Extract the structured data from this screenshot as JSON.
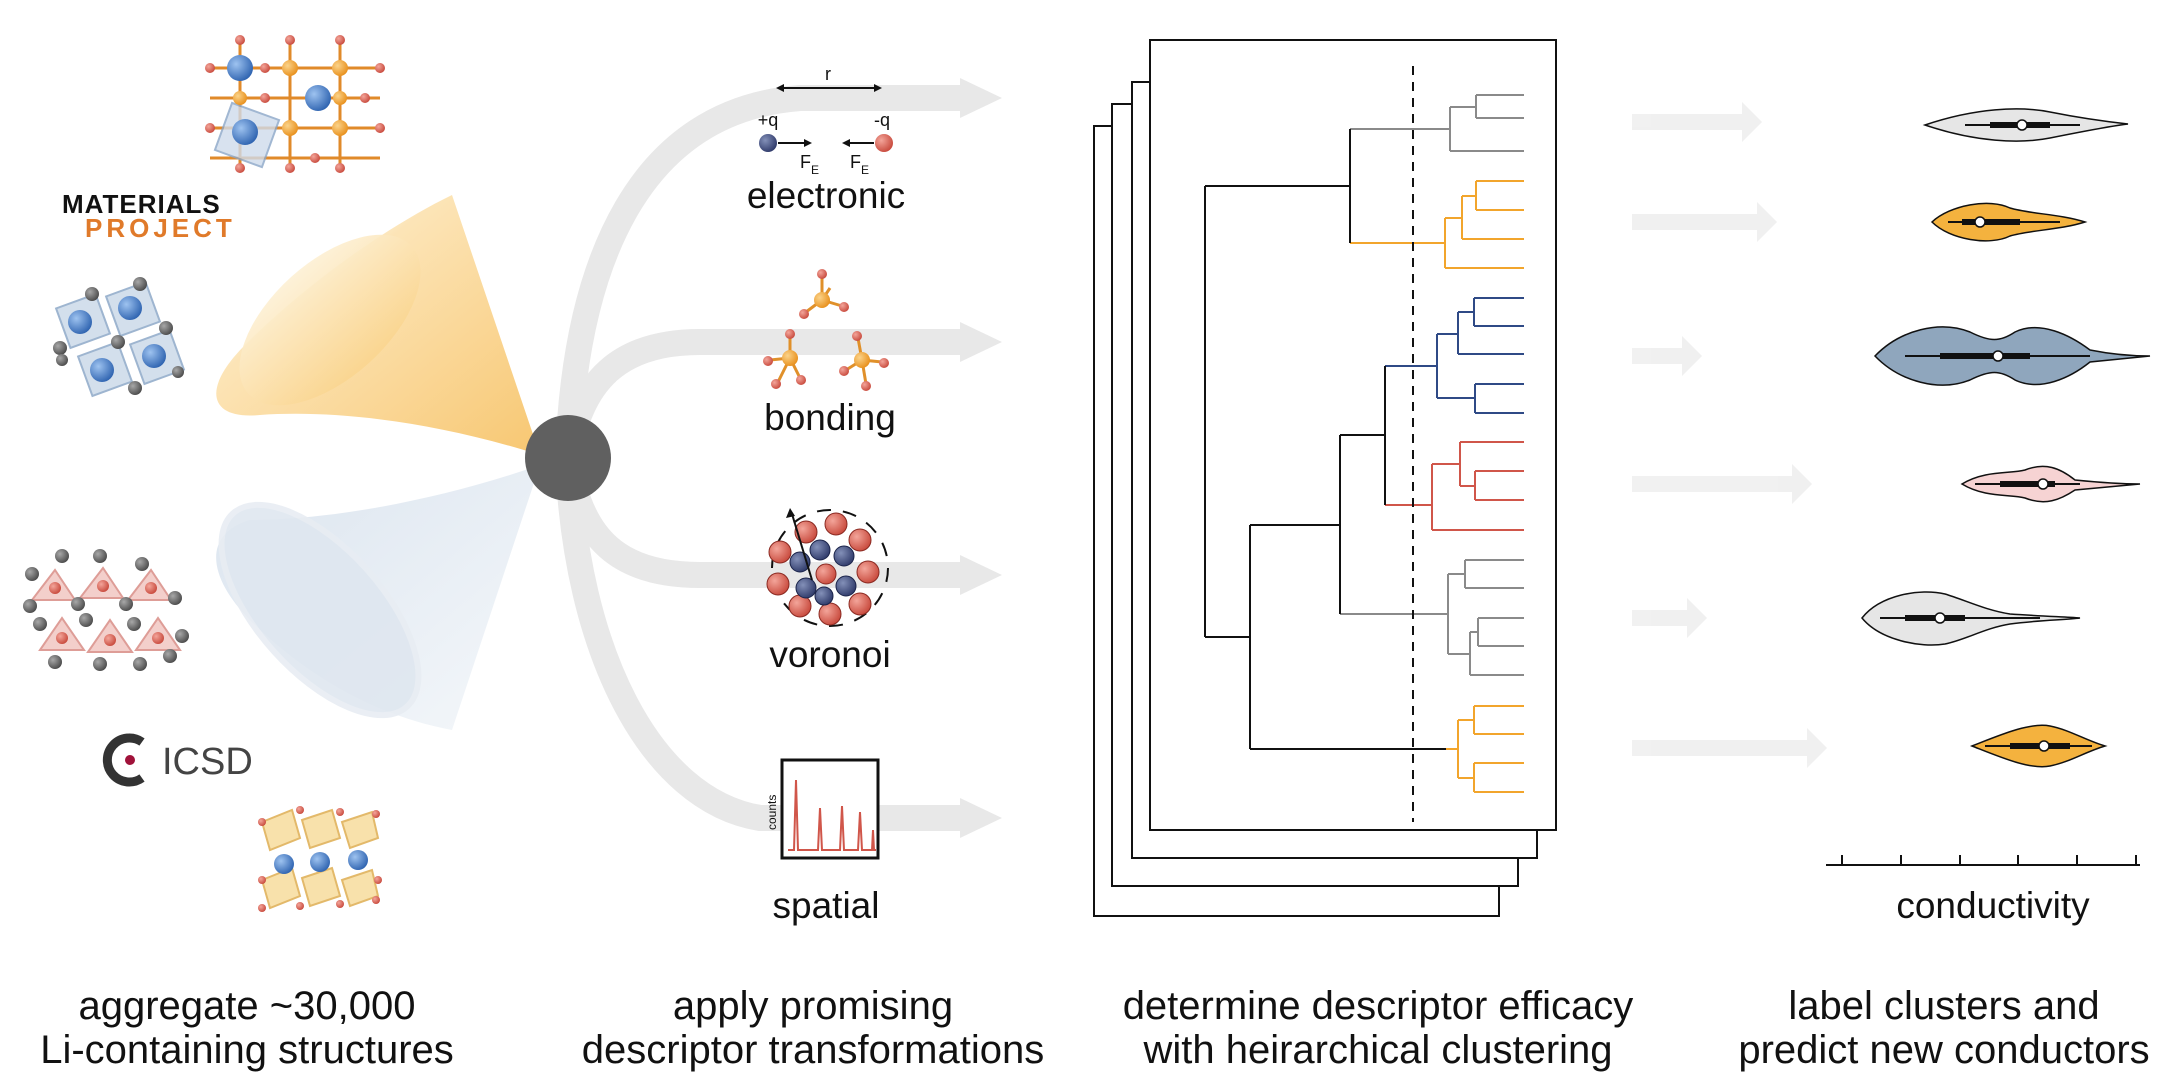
{
  "sources": {
    "materials_project": {
      "line1": "MATERIALS",
      "line2": "PROJECT"
    },
    "icsd": {
      "label": "ICSD"
    }
  },
  "descriptors": {
    "electronic": {
      "label": "electronic",
      "r": "r",
      "plus_q": "+q",
      "minus_q": "-q",
      "force": "F",
      "force_sub": "E"
    },
    "bonding": {
      "label": "bonding"
    },
    "voronoi": {
      "label": "voronoi"
    },
    "spatial": {
      "label": "spatial",
      "axis": "counts"
    }
  },
  "conductivity": {
    "label": "conductivity"
  },
  "captions": {
    "step1": {
      "line1": "aggregate ~30,000",
      "line2": "Li-containing structures"
    },
    "step2": {
      "line1": "apply promising",
      "line2": "descriptor transformations"
    },
    "step3": {
      "line1": "determine descriptor efficacy",
      "line2": "with heirarchical clustering"
    },
    "step4": {
      "line1": "label clusters and",
      "line2": "predict new conductors"
    }
  },
  "colors": {
    "yellow": "#f2b134",
    "blue": "#2f4a86",
    "red": "#d0564a",
    "gray": "#8a8a8a",
    "hub": "#606060",
    "arrow": "#e8e8e8",
    "violin_gray": "#e6e6e6",
    "violin_yellow": "#f4b23e",
    "violin_blue": "#8fa6bd",
    "violin_pink": "#f6d3d3"
  },
  "icons": [
    "crystal-structure-icon",
    "octahedra-icon",
    "layered-structure-icon",
    "icsd-logo-icon",
    "charge-dipole-icon",
    "bond-cluster-icon",
    "voronoi-cell-icon",
    "spectrum-plot-icon"
  ]
}
